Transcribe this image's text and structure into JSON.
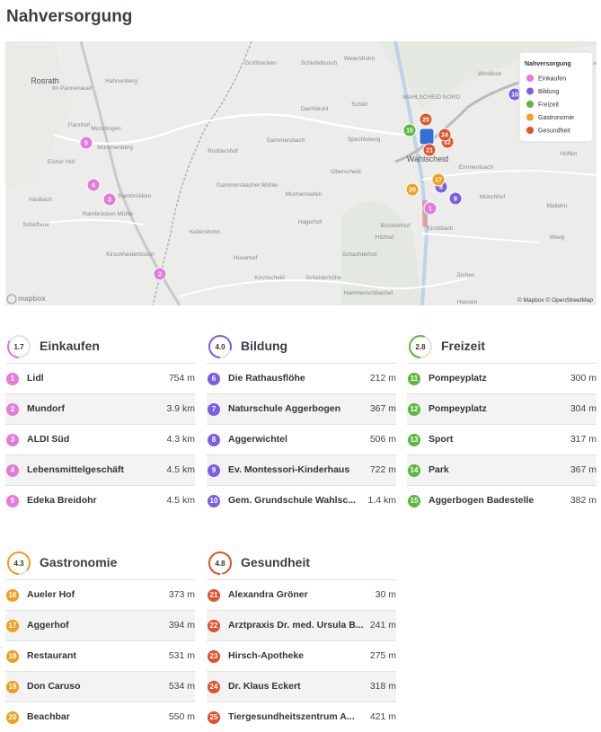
{
  "header": {
    "title": "Nahversorgung"
  },
  "map": {
    "places": [
      "Großhecken",
      "Schiefelbusch",
      "Weiershohn",
      "Rosrath",
      "Hahnenberg",
      "Im Pannenauel",
      "Pannhof",
      "Monzlingen",
      "Münchenberg",
      "Eicher Hof",
      "Hasbach",
      "Rambrücken",
      "Rambrücken Mühle",
      "Schefferei",
      "Kirschheiderbüsch",
      "Dachskuhl",
      "Schiid",
      "Gammersbach",
      "Spechtsberg",
      "Roddershof",
      "Oberscheid",
      "Gammersbacher Mühle",
      "Muchensiefen",
      "Kellershohn",
      "Hagerhof",
      "Hoverhof",
      "Schachterhof",
      "Scheiderhöhe",
      "Kirchscheid",
      "Hammerschbachel",
      "Windlock",
      "WAHLSCHEID NORD",
      "Wahlscheid",
      "Emmersbach",
      "Höffen",
      "Münchhof",
      "Brückenhof",
      "Hitzhof",
      "Kirchbach",
      "Weeg",
      "Mallahn",
      "Jüchen",
      "Hausen"
    ],
    "markers": [
      {
        "label": "2",
        "group": 0
      },
      {
        "label": "3",
        "group": 0
      },
      {
        "label": "4",
        "group": 0
      },
      {
        "label": "5",
        "group": 0
      },
      {
        "label": "1",
        "group": 0
      },
      {
        "label": "10",
        "group": 1
      },
      {
        "label": "9",
        "group": 1
      },
      {
        "label": "8",
        "group": 1
      },
      {
        "label": "20",
        "group": 3
      },
      {
        "label": "17",
        "group": 3
      },
      {
        "label": "15",
        "group": 2
      },
      {
        "label": "25",
        "group": 4
      },
      {
        "label": "22",
        "group": 4
      },
      {
        "label": "24",
        "group": 4
      },
      {
        "label": "21",
        "group": 4
      }
    ],
    "legend": {
      "title": "Nahversorgung",
      "items": [
        "Einkaufen",
        "Bildung",
        "Freizeit",
        "Gastronomie",
        "Gesundheit"
      ]
    },
    "logo": "mapbox",
    "attribution": "© Mapbox © OpenStreetMap"
  },
  "sections": [
    {
      "score": "1.7",
      "title": "Einkaufen",
      "color": "#e27bd9",
      "items": [
        {
          "label": "1",
          "name": "Lidl",
          "distance": "754 m"
        },
        {
          "label": "2",
          "name": "Mundorf",
          "distance": "3.9 km"
        },
        {
          "label": "3",
          "name": "ALDI Süd",
          "distance": "4.3 km"
        },
        {
          "label": "4",
          "name": "Lebensmittelgeschäft",
          "distance": "4.5 km"
        },
        {
          "label": "5",
          "name": "Edeka Breidohr",
          "distance": "4.5 km"
        }
      ]
    },
    {
      "score": "4.0",
      "title": "Bildung",
      "color": "#7b5fe4",
      "items": [
        {
          "label": "6",
          "name": "Die Rathausflöhe",
          "distance": "212 m"
        },
        {
          "label": "7",
          "name": "Naturschule Aggerbogen",
          "distance": "367 m"
        },
        {
          "label": "8",
          "name": "Aggerwichtel",
          "distance": "506 m"
        },
        {
          "label": "9",
          "name": "Ev. Montessori-Kinderhaus",
          "distance": "722 m"
        },
        {
          "label": "10",
          "name": "Gem. Grundschule Wahlsc...",
          "distance": "1.4 km"
        }
      ]
    },
    {
      "score": "2.8",
      "title": "Freizeit",
      "color": "#5cb83d",
      "items": [
        {
          "label": "11",
          "name": "Pompeyplatz",
          "distance": "300 m"
        },
        {
          "label": "12",
          "name": "Pompeyplatz",
          "distance": "304 m"
        },
        {
          "label": "13",
          "name": "Sport",
          "distance": "317 m"
        },
        {
          "label": "14",
          "name": "Park",
          "distance": "367 m"
        },
        {
          "label": "15",
          "name": "Aggerbogen Badestelle",
          "distance": "382 m"
        }
      ]
    },
    {
      "score": "4.3",
      "title": "Gastronomie",
      "color": "#f0a01e",
      "items": [
        {
          "label": "16",
          "name": "Aueler Hof",
          "distance": "373 m"
        },
        {
          "label": "17",
          "name": "Aggerhof",
          "distance": "394 m"
        },
        {
          "label": "18",
          "name": "Restaurant",
          "distance": "531 m"
        },
        {
          "label": "19",
          "name": "Don Caruso",
          "distance": "534 m"
        },
        {
          "label": "20",
          "name": "Beachbar",
          "distance": "550 m"
        }
      ]
    },
    {
      "score": "4.8",
      "title": "Gesundheit",
      "color": "#e0522e",
      "items": [
        {
          "label": "21",
          "name": "Alexandra Gröner",
          "distance": "30 m"
        },
        {
          "label": "22",
          "name": "Arztpraxis Dr. med. Ursula B...",
          "distance": "241 m"
        },
        {
          "label": "23",
          "name": "Hirsch-Apotheke",
          "distance": "275 m"
        },
        {
          "label": "24",
          "name": "Dr. Klaus Eckert",
          "distance": "318 m"
        },
        {
          "label": "25",
          "name": "Tiergesundheitszentrum A...",
          "distance": "421 m"
        }
      ]
    }
  ]
}
